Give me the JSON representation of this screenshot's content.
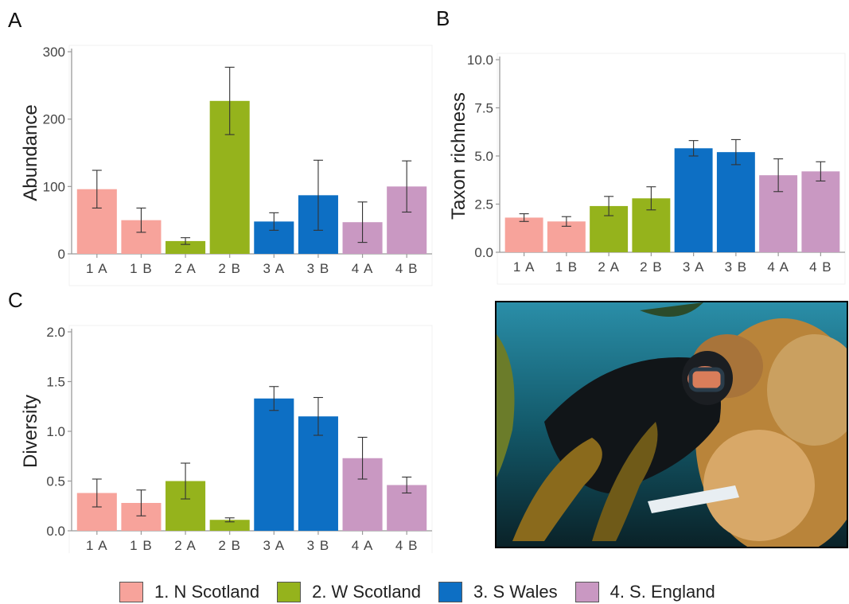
{
  "panels": {
    "a_letter": "A",
    "b_letter": "B",
    "c_letter": "C"
  },
  "legend": [
    {
      "label": "1. N Scotland",
      "color": "#f7a39b"
    },
    {
      "label": "2. W Scotland",
      "color": "#95b31c"
    },
    {
      "label": "3. S Wales",
      "color": "#0d6fc4"
    },
    {
      "label": "4. S. England",
      "color": "#c998c2"
    }
  ],
  "photo": {
    "description_icon": "diver-photo"
  },
  "chart_data": [
    {
      "id": "A",
      "type": "bar",
      "ylabel": "Abundance",
      "ylim": [
        0,
        300
      ],
      "yticks": [
        0,
        100,
        200,
        300
      ],
      "categories": [
        "1 A",
        "1 B",
        "2 A",
        "2 B",
        "3 A",
        "3 B",
        "4 A",
        "4 B"
      ],
      "groups": [
        1,
        1,
        2,
        2,
        3,
        3,
        4,
        4
      ],
      "values": [
        96,
        50,
        19,
        227,
        48,
        87,
        47,
        100
      ],
      "errors": [
        28,
        18,
        5,
        50,
        13,
        52,
        30,
        38
      ]
    },
    {
      "id": "B",
      "type": "bar",
      "ylabel": "Taxon richness",
      "ylim": [
        0,
        10
      ],
      "yticks": [
        0.0,
        2.5,
        5.0,
        7.5,
        10.0
      ],
      "ytick_labels": [
        "0.0",
        "2.5",
        "5.0",
        "7.5",
        "10.0"
      ],
      "categories": [
        "1 A",
        "1 B",
        "2 A",
        "2 B",
        "3 A",
        "3 B",
        "4 A",
        "4 B"
      ],
      "groups": [
        1,
        1,
        2,
        2,
        3,
        3,
        4,
        4
      ],
      "values": [
        1.8,
        1.6,
        2.4,
        2.8,
        5.4,
        5.2,
        4.0,
        4.2
      ],
      "errors": [
        0.2,
        0.25,
        0.5,
        0.6,
        0.4,
        0.65,
        0.85,
        0.5
      ]
    },
    {
      "id": "C",
      "type": "bar",
      "ylabel": "Diversity",
      "ylim": [
        0,
        2
      ],
      "yticks": [
        0.0,
        0.5,
        1.0,
        1.5,
        2.0
      ],
      "ytick_labels": [
        "0.0",
        "0.5",
        "1.0",
        "1.5",
        "2.0"
      ],
      "categories": [
        "1 A",
        "1 B",
        "2 A",
        "2 B",
        "3 A",
        "3 B",
        "4 A",
        "4 B"
      ],
      "groups": [
        1,
        1,
        2,
        2,
        3,
        3,
        4,
        4
      ],
      "values": [
        0.38,
        0.28,
        0.5,
        0.11,
        1.33,
        1.15,
        0.73,
        0.46
      ],
      "errors": [
        0.14,
        0.13,
        0.18,
        0.02,
        0.12,
        0.19,
        0.21,
        0.08
      ]
    }
  ]
}
